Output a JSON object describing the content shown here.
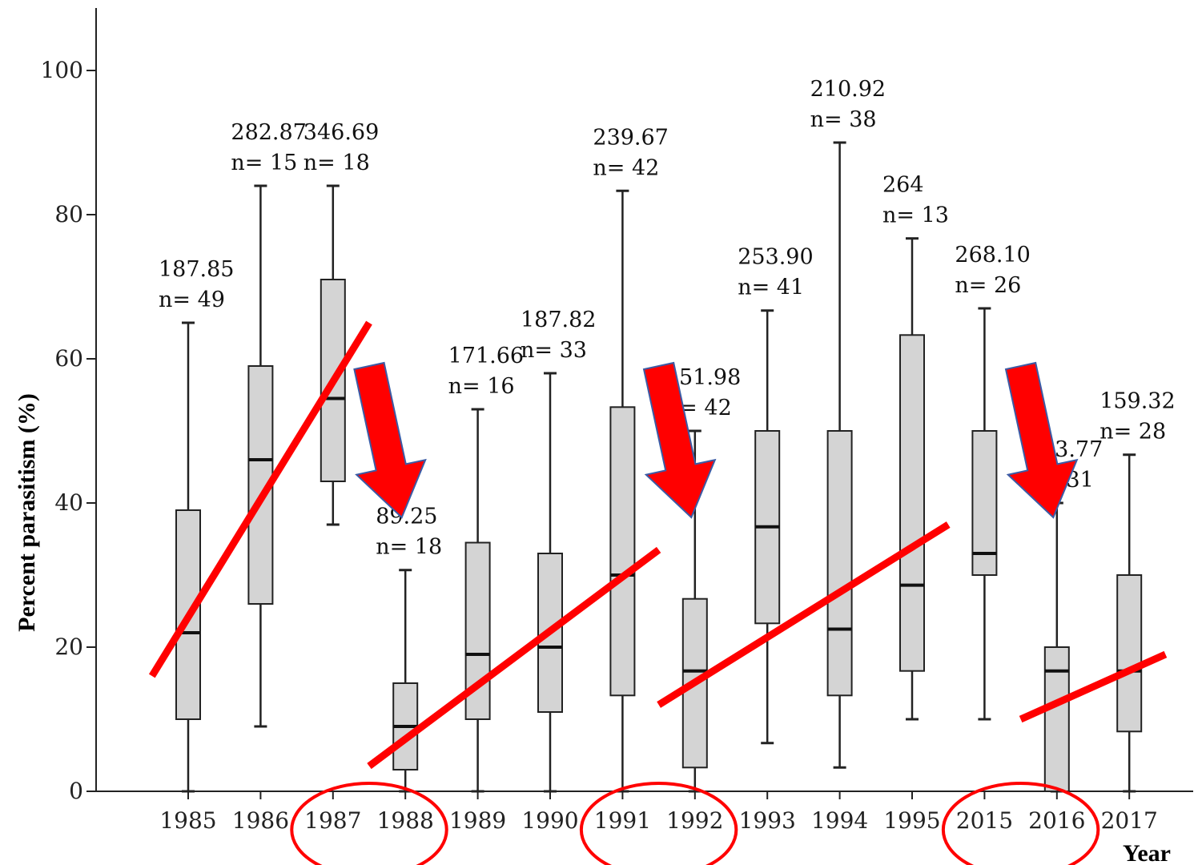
{
  "chart_data": {
    "type": "box",
    "title": "",
    "xlabel": "Year",
    "ylabel": "Percent parasitism (%)",
    "ylim": [
      0,
      108
    ],
    "yticks": [
      0,
      20,
      40,
      60,
      80,
      100
    ],
    "grid": false,
    "categories": [
      "1985",
      "1986",
      "1987",
      "1988",
      "1989",
      "1990",
      "1991",
      "1992",
      "1993",
      "1994",
      "1995",
      "2015",
      "2016",
      "2017"
    ],
    "boxes": [
      {
        "year": "1985",
        "min": 0,
        "q1": 10,
        "median": 22,
        "q3": 39,
        "max": 65,
        "value_label": "187.85",
        "n_label": "n= 49"
      },
      {
        "year": "1986",
        "min": 9,
        "q1": 26,
        "median": 46,
        "q3": 59,
        "max": 84,
        "value_label": "282.87",
        "n_label": "n= 15"
      },
      {
        "year": "1987",
        "min": 37,
        "q1": 43,
        "median": 54.5,
        "q3": 71,
        "max": 84,
        "value_label": "346.69",
        "n_label": "n= 18"
      },
      {
        "year": "1988",
        "min": 0,
        "q1": 3,
        "median": 9,
        "q3": 15,
        "max": 30.7,
        "value_label": "89.25",
        "n_label": "n= 18"
      },
      {
        "year": "1989",
        "min": 0,
        "q1": 10,
        "median": 19,
        "q3": 34.5,
        "max": 53,
        "value_label": "171.66",
        "n_label": "n= 16"
      },
      {
        "year": "1990",
        "min": 0,
        "q1": 11,
        "median": 20,
        "q3": 33,
        "max": 58,
        "value_label": "187.82",
        "n_label": "n= 33"
      },
      {
        "year": "1991",
        "min": 0,
        "q1": 13.3,
        "median": 30,
        "q3": 53.3,
        "max": 83.3,
        "value_label": "239.67",
        "n_label": "n= 42"
      },
      {
        "year": "1992",
        "min": 0,
        "q1": 3.3,
        "median": 16.7,
        "q3": 26.7,
        "max": 50,
        "value_label": "151.98",
        "n_label": "n= 42"
      },
      {
        "year": "1993",
        "min": 6.7,
        "q1": 23.3,
        "median": 36.7,
        "q3": 50,
        "max": 66.7,
        "value_label": "253.90",
        "n_label": "n= 41"
      },
      {
        "year": "1994",
        "min": 3.3,
        "q1": 13.3,
        "median": 22.5,
        "q3": 50,
        "max": 90,
        "value_label": "210.92",
        "n_label": "n= 38"
      },
      {
        "year": "1995",
        "min": 10,
        "q1": 16.7,
        "median": 28.6,
        "q3": 63.3,
        "max": 76.7,
        "value_label": "264",
        "n_label": "n= 13"
      },
      {
        "year": "2015",
        "min": 10,
        "q1": 30,
        "median": 33,
        "q3": 50,
        "max": 67,
        "value_label": "268.10",
        "n_label": "n= 26"
      },
      {
        "year": "2016",
        "min": 0,
        "q1": 0,
        "median": 16.7,
        "q3": 20,
        "max": 40,
        "value_label": "123.77",
        "n_label": "n= 31"
      },
      {
        "year": "2017",
        "min": 0,
        "q1": 8.3,
        "median": 16.7,
        "q3": 30,
        "max": 46.7,
        "value_label": "159.32",
        "n_label": "n= 28"
      }
    ],
    "trend_lines": [
      {
        "from": {
          "x": "1985",
          "y": 16
        },
        "to": {
          "x": "1987",
          "y": 65
        }
      },
      {
        "from": {
          "x": "1988",
          "y": 3.5
        },
        "to": {
          "x": "1991",
          "y": 33.5
        }
      },
      {
        "from": {
          "x": "1992",
          "y": 12
        },
        "to": {
          "x": "1995",
          "y": 37
        }
      },
      {
        "from": {
          "x": "2016",
          "y": 10
        },
        "to": {
          "x": "2017",
          "y": 19
        }
      }
    ],
    "drop_arrows": [
      {
        "from_year": "1987",
        "to_year": "1988"
      },
      {
        "from_year": "1991",
        "to_year": "1992"
      },
      {
        "from_year": "2015",
        "to_year": "2016"
      }
    ],
    "highlighted_pairs": [
      [
        "1987",
        "1988"
      ],
      [
        "1991",
        "1992"
      ],
      [
        "2015",
        "2016"
      ]
    ],
    "colors": {
      "box_fill": "#d4d4d4",
      "box_stroke": "#222222",
      "annotation": "#ff0000",
      "arrow_stroke": "#3b5ba5"
    }
  }
}
